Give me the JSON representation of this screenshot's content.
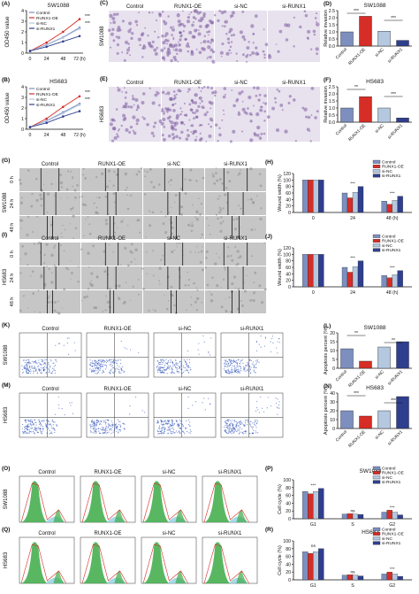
{
  "colors": {
    "control": "#7c8fbf",
    "oe": "#d62d26",
    "nc": "#b4c8e0",
    "si": "#2f3f8f",
    "pink": "#e8e1ee",
    "stain": "#7b5ca0",
    "gray": "#c6c6c6"
  },
  "series_names": [
    "Control",
    "RUNX1-OE",
    "si-NC",
    "si-RUNX1"
  ],
  "groups": [
    "Control",
    "RUNX1-OE",
    "si-NC",
    "si-RUNX1"
  ],
  "panels": {
    "A": "(A)",
    "B": "(B)",
    "C": "(C)",
    "D": "(D)",
    "E": "(E)",
    "F": "(F)",
    "G": "(G)",
    "H": "(H)",
    "I": "(I)",
    "J": "(J)",
    "K": "(K)",
    "L": "(L)",
    "M": "(M)",
    "N": "(N)",
    "O": "(O)",
    "P": "(P)",
    "Q": "(Q)",
    "R": "(R)"
  },
  "cell_lines": {
    "sw": "SW1088",
    "hs": "HS683"
  },
  "time_rows": [
    "0 h",
    "24 h",
    "48 h"
  ],
  "growth": {
    "ylabel": "OD450 value",
    "x_ticks": [
      "0",
      "24",
      "48",
      "72 (h)"
    ],
    "y_ticks": [
      "0",
      "1",
      "2",
      "3",
      "4"
    ],
    "star": "***"
  },
  "invasion": {
    "ylabel": "Relative invasion",
    "y_ticks_sw": [
      "0.0",
      "0.5",
      "1.0",
      "1.5",
      "2.0",
      "2.5"
    ],
    "y_ticks_hs": [
      "0.0",
      "0.5",
      "1.0",
      "1.5",
      "2.0",
      "2.5"
    ],
    "sig": "***",
    "sig_hs": "**"
  },
  "wound": {
    "ylabel": "Wound width (%)",
    "x_ticks": [
      "0",
      "24",
      "48 (h)"
    ],
    "y_ticks": [
      "0",
      "20",
      "40",
      "60",
      "80",
      "100",
      "120"
    ],
    "sig": "***"
  },
  "apoptosis": {
    "ylabel": "Apoptosis percent (%)",
    "y_ticks_sw": [
      "0",
      "5",
      "10",
      "15",
      "20"
    ],
    "y_ticks_hs": [
      "0",
      "10",
      "20",
      "30",
      "40"
    ],
    "sig_a": "**",
    "sig_b": "***"
  },
  "cellcycle": {
    "ylabel": "Cell cycle (%)",
    "phases": [
      "G1",
      "S",
      "G2"
    ],
    "y_ticks": [
      "0",
      "20",
      "40",
      "60",
      "80",
      "100"
    ],
    "sig": "***",
    "ns": "ns"
  },
  "chart_data": [
    {
      "type": "line",
      "panel": "A",
      "title": "SW1088",
      "x": [
        0,
        24,
        48,
        72
      ],
      "series": [
        {
          "name": "Control",
          "values": [
            0.2,
            0.8,
            1.5,
            2.4
          ]
        },
        {
          "name": "RUNX1-OE",
          "values": [
            0.2,
            1.0,
            2.0,
            3.2
          ]
        },
        {
          "name": "si-NC",
          "values": [
            0.2,
            0.75,
            1.45,
            2.3
          ]
        },
        {
          "name": "si-RUNX1",
          "values": [
            0.2,
            0.6,
            1.1,
            1.6
          ]
        }
      ],
      "ylim": [
        0,
        4
      ]
    },
    {
      "type": "line",
      "panel": "B",
      "title": "HS683",
      "x": [
        0,
        24,
        48,
        72
      ],
      "series": [
        {
          "name": "Control",
          "values": [
            0.2,
            0.8,
            1.6,
            2.4
          ]
        },
        {
          "name": "RUNX1-OE",
          "values": [
            0.2,
            1.0,
            2.1,
            3.1
          ]
        },
        {
          "name": "si-NC",
          "values": [
            0.2,
            0.75,
            1.5,
            2.3
          ]
        },
        {
          "name": "si-RUNX1",
          "values": [
            0.2,
            0.6,
            1.2,
            1.7
          ]
        }
      ],
      "ylim": [
        0,
        4
      ]
    },
    {
      "type": "bar",
      "panel": "D",
      "title": "SW1088",
      "categories": [
        "Control",
        "RUNX1-OE",
        "si-NC",
        "si-RUNX1"
      ],
      "values": [
        1.0,
        2.1,
        1.05,
        0.4
      ],
      "ylim": [
        0,
        2.5
      ]
    },
    {
      "type": "bar",
      "panel": "F",
      "title": "HS683",
      "categories": [
        "Control",
        "RUNX1-OE",
        "si-NC",
        "si-RUNX1"
      ],
      "values": [
        1.0,
        1.8,
        1.0,
        0.3
      ],
      "ylim": [
        0,
        2.5
      ]
    },
    {
      "type": "bar",
      "panel": "H",
      "categories": [
        "0",
        "24",
        "48"
      ],
      "series": [
        {
          "name": "Control",
          "values": [
            100,
            60,
            35
          ]
        },
        {
          "name": "RUNX1-OE",
          "values": [
            100,
            45,
            25
          ]
        },
        {
          "name": "si-NC",
          "values": [
            100,
            62,
            37
          ]
        },
        {
          "name": "si-RUNX1",
          "values": [
            100,
            80,
            50
          ]
        }
      ],
      "ylim": [
        0,
        120
      ]
    },
    {
      "type": "bar",
      "panel": "J",
      "categories": [
        "0",
        "24",
        "48"
      ],
      "series": [
        {
          "name": "Control",
          "values": [
            100,
            60,
            35
          ]
        },
        {
          "name": "RUNX1-OE",
          "values": [
            100,
            45,
            28
          ]
        },
        {
          "name": "si-NC",
          "values": [
            100,
            62,
            37
          ]
        },
        {
          "name": "si-RUNX1",
          "values": [
            100,
            80,
            50
          ]
        }
      ],
      "ylim": [
        0,
        120
      ]
    },
    {
      "type": "bar",
      "panel": "L",
      "title": "SW1088",
      "categories": [
        "Control",
        "RUNX1-OE",
        "si-NC",
        "si-RUNX1"
      ],
      "values": [
        11,
        4,
        12,
        15
      ],
      "ylim": [
        0,
        20
      ]
    },
    {
      "type": "bar",
      "panel": "N",
      "title": "HS683",
      "categories": [
        "Control",
        "RUNX1-OE",
        "si-NC",
        "si-RUNX1"
      ],
      "values": [
        20,
        14,
        20,
        36
      ],
      "ylim": [
        0,
        40
      ]
    },
    {
      "type": "bar",
      "panel": "P",
      "title": "SW1088",
      "categories": [
        "G1",
        "S",
        "G2"
      ],
      "series": [
        {
          "name": "Control",
          "values": [
            70,
            12,
            17
          ]
        },
        {
          "name": "RUNX1-OE",
          "values": [
            64,
            13,
            22
          ]
        },
        {
          "name": "si-NC",
          "values": [
            70,
            12,
            17
          ]
        },
        {
          "name": "si-RUNX1",
          "values": [
            78,
            11,
            10
          ]
        }
      ],
      "ylim": [
        0,
        100
      ]
    },
    {
      "type": "bar",
      "panel": "R",
      "title": "HS683",
      "categories": [
        "G1",
        "S",
        "G2"
      ],
      "series": [
        {
          "name": "Control",
          "values": [
            72,
            12,
            15
          ]
        },
        {
          "name": "RUNX1-OE",
          "values": [
            68,
            13,
            20
          ]
        },
        {
          "name": "si-NC",
          "values": [
            72,
            12,
            15
          ]
        },
        {
          "name": "si-RUNX1",
          "values": [
            80,
            10,
            9
          ]
        }
      ],
      "ylim": [
        0,
        100
      ]
    }
  ]
}
